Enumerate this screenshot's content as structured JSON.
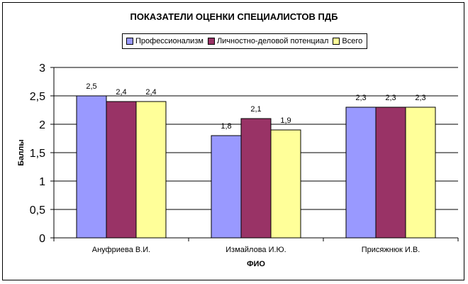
{
  "chart_data": {
    "type": "bar",
    "title": "ПОКАЗАТЕЛИ ОЦЕНКИ СПЕЦИАЛИСТОВ ПДБ",
    "xlabel": "ФИО",
    "ylabel": "Баллы",
    "ylim": [
      0,
      3
    ],
    "yticks": [
      "0",
      "0,5",
      "1",
      "1,5",
      "2",
      "2,5",
      "3"
    ],
    "categories": [
      "Ануфриева В.И.",
      "Измайлова И.Ю.",
      "Присяжнюк И.В."
    ],
    "series": [
      {
        "name": "Профессионализм",
        "color": "#9999ff",
        "values": [
          2.5,
          1.8,
          2.3
        ],
        "labels": [
          "2,5",
          "1,8",
          "2,3"
        ]
      },
      {
        "name": "Личностно-деловой потенциал",
        "color": "#993366",
        "values": [
          2.4,
          2.1,
          2.3
        ],
        "labels": [
          "2,4",
          "2,1",
          "2,3"
        ]
      },
      {
        "name": "Всего",
        "color": "#ffff99",
        "values": [
          2.4,
          1.9,
          2.3
        ],
        "labels": [
          "2,4",
          "1,9",
          "2,3"
        ]
      }
    ],
    "grid": true,
    "legend_position": "top"
  }
}
